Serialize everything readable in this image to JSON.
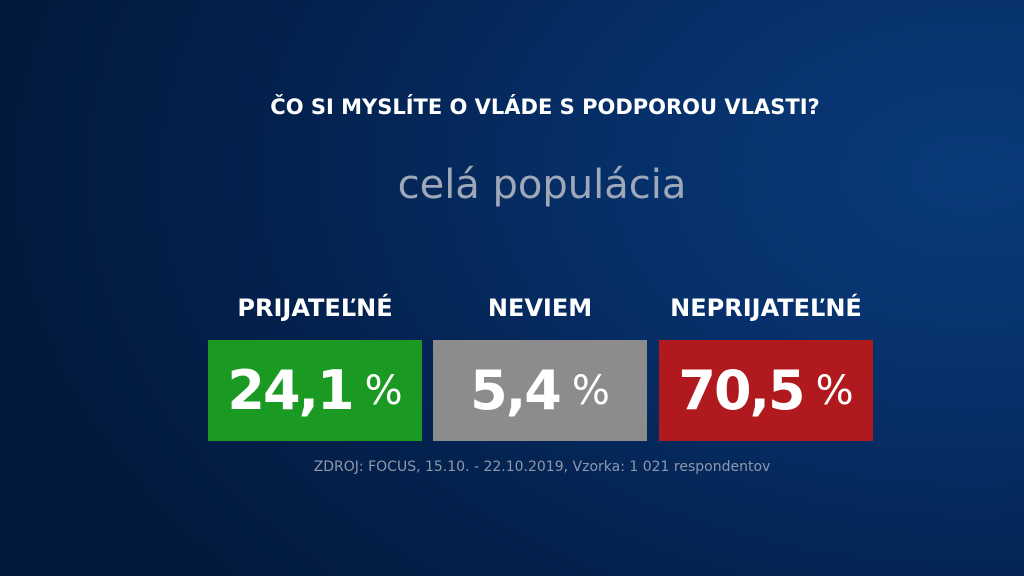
{
  "question": "ČO SI MYSLÍTE O VLÁDE S PODPOROU VLASTI?",
  "subtitle": "celá populácia",
  "results": [
    {
      "label": "PRIJATEĽNÉ",
      "value_text": "24,1",
      "unit": "%",
      "color": "#1a9a23"
    },
    {
      "label": "NEVIEM",
      "value_text": "5,4",
      "unit": "%",
      "color": "#8c8c8c"
    },
    {
      "label": "NEPRIJATEĽNÉ",
      "value_text": "70,5",
      "unit": "%",
      "color": "#b01a1e"
    }
  ],
  "source": "ZDROJ: FOCUS, 15.10. - 22.10.2019, Vzorka: 1 021 respondentov",
  "chart_data": {
    "type": "table",
    "title": "ČO SI MYSLÍTE O VLÁDE S PODPOROU VLASTI?",
    "subtitle": "celá populácia",
    "categories": [
      "PRIJATEĽNÉ",
      "NEVIEM",
      "NEPRIJATEĽNÉ"
    ],
    "values": [
      24.1,
      5.4,
      70.5
    ],
    "unit": "%",
    "colors": [
      "#1a9a23",
      "#8c8c8c",
      "#b01a1e"
    ]
  }
}
